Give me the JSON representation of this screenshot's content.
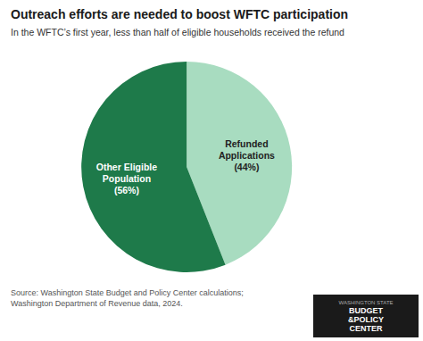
{
  "chart_data": {
    "type": "pie",
    "title": "Outreach efforts are needed to boost WFTC participation",
    "subtitle": "In the WFTC’s first year, less than half of eligible households received the refund",
    "categories": [
      "Refunded Applications",
      "Other Eligible Population"
    ],
    "values": [
      44,
      56
    ],
    "value_labels": [
      "(44%)",
      "(56%)"
    ],
    "data_labels": true,
    "colors": [
      "#a8dcc0",
      "#1e7a4a"
    ],
    "annotations": [
      "Source: Washington State Budget and Policy Center calculations;\nWashington Department of Revenue data, 2024.",
      "WASHINGTON STATE",
      "BUDGET",
      "&POLICY",
      "CENTER"
    ]
  }
}
